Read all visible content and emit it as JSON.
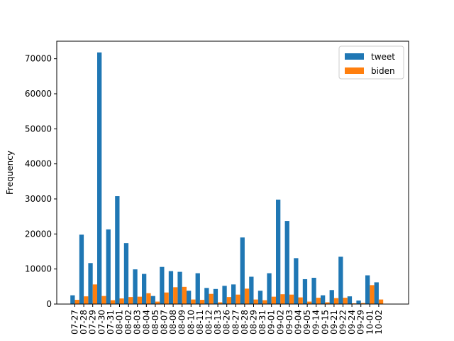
{
  "chart_data": {
    "type": "bar",
    "ylabel": "Frequency",
    "xlabel": "",
    "ylim": [
      0,
      75000
    ],
    "yticks": [
      0,
      10000,
      20000,
      30000,
      40000,
      50000,
      60000,
      70000
    ],
    "grid": false,
    "legend_position": "top-right",
    "categories": [
      "07-27",
      "07-28",
      "07-29",
      "07-30",
      "07-31",
      "08-01",
      "08-02",
      "08-03",
      "08-04",
      "08-05",
      "08-07",
      "08-08",
      "08-09",
      "08-10",
      "08-11",
      "08-12",
      "08-13",
      "08-26",
      "08-27",
      "08-28",
      "08-29",
      "08-31",
      "09-01",
      "09-02",
      "09-03",
      "09-04",
      "09-05",
      "09-14",
      "09-15",
      "09-21",
      "09-22",
      "09-24",
      "09-29",
      "10-01",
      "10-02"
    ],
    "series": [
      {
        "name": "tweet",
        "color": "#1f77b4",
        "values": [
          2500,
          19800,
          11700,
          71800,
          21300,
          30800,
          17400,
          9900,
          8600,
          2300,
          10600,
          9400,
          9200,
          3800,
          8800,
          4600,
          4300,
          5200,
          5600,
          19000,
          7800,
          3800,
          8800,
          29800,
          23700,
          13100,
          7100,
          7500,
          2500,
          4000,
          13500,
          2200,
          1000,
          8200,
          6200
        ]
      },
      {
        "name": "biden",
        "color": "#ff7f0e",
        "values": [
          1200,
          2200,
          5600,
          2300,
          1100,
          1600,
          2000,
          2100,
          3100,
          700,
          3300,
          4800,
          4900,
          1300,
          1200,
          2900,
          500,
          2000,
          2700,
          4400,
          1300,
          1100,
          2100,
          2800,
          2700,
          1900,
          700,
          1800,
          500,
          1700,
          1800,
          200,
          300,
          5400,
          1300
        ]
      }
    ]
  }
}
